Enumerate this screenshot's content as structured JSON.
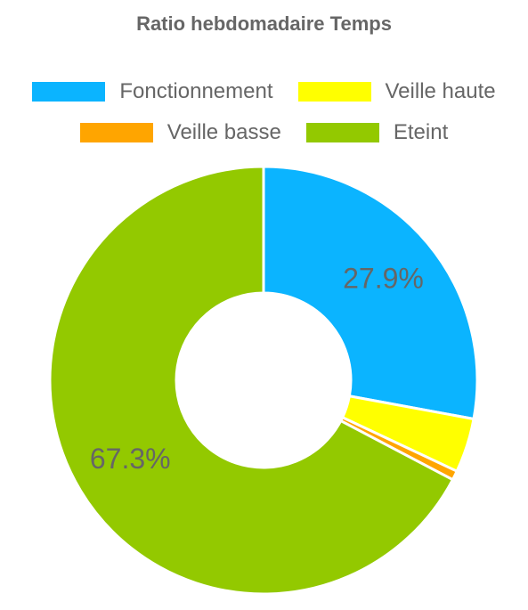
{
  "chart_data": {
    "type": "pie",
    "title": "Ratio hebdomadaire Temps",
    "categories": [
      "Fonctionnement",
      "Veille haute",
      "Veille basse",
      "Eteint"
    ],
    "values": [
      27.9,
      4.1,
      0.7,
      67.3
    ],
    "colors": [
      "#0bb4ff",
      "#ffff00",
      "#ffa500",
      "#93c900"
    ],
    "data_labels": [
      {
        "index": 0,
        "text": "27.9%"
      },
      {
        "index": 3,
        "text": "67.3%"
      }
    ],
    "legend_placement": "top",
    "donut": true
  }
}
